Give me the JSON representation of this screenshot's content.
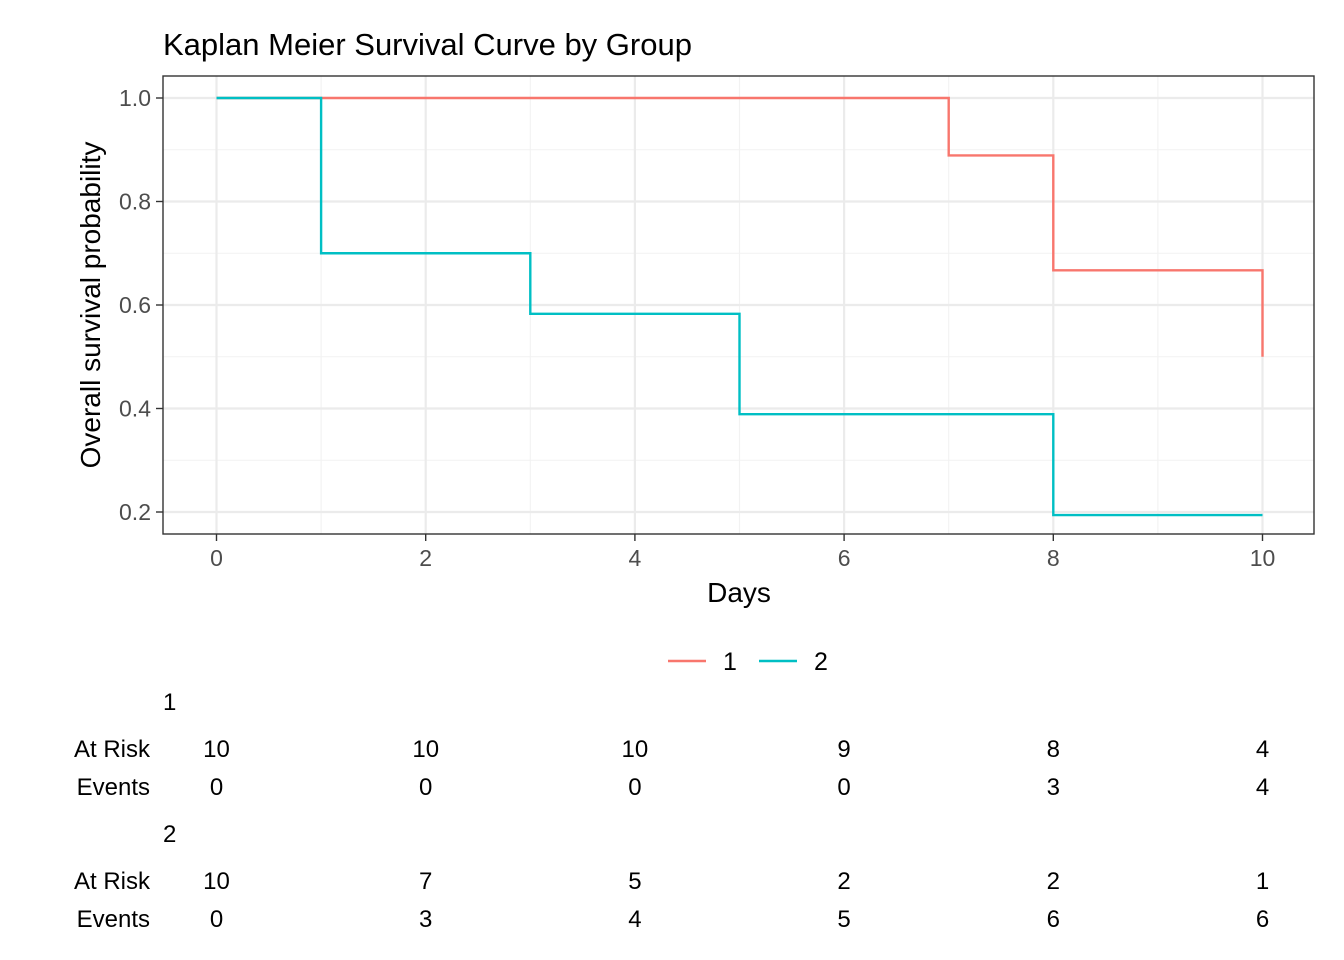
{
  "chart_data": {
    "type": "line",
    "step": true,
    "title": "Kaplan Meier Survival Curve by Group",
    "xlabel": "Days",
    "ylabel": "Overall survival probability",
    "xlim": [
      -0.5,
      10.5
    ],
    "ylim": [
      0.16,
      1.04
    ],
    "xticks": [
      0,
      2,
      4,
      6,
      8,
      10
    ],
    "xtick_labels": [
      "0",
      "2",
      "4",
      "6",
      "8",
      "10"
    ],
    "yticks": [
      0.2,
      0.4,
      0.6,
      0.8,
      1.0
    ],
    "ytick_labels": [
      "0.2",
      "0.4",
      "0.6",
      "0.8",
      "1.0"
    ],
    "grid": true,
    "legend": "bottom",
    "series": [
      {
        "name": "1",
        "color": "#F8766D",
        "x": [
          0,
          7,
          8,
          10
        ],
        "y": [
          1.0,
          0.889,
          0.667,
          0.5
        ]
      },
      {
        "name": "2",
        "color": "#00BFC4",
        "x": [
          0,
          1,
          3,
          5,
          8,
          10
        ],
        "y": [
          1.0,
          0.7,
          0.583,
          0.389,
          0.194,
          0.194
        ]
      }
    ],
    "risk_table": {
      "times": [
        0,
        2,
        4,
        6,
        8,
        10
      ],
      "row_labels": [
        "At Risk",
        "Events"
      ],
      "groups": [
        {
          "name": "1",
          "at_risk": [
            "10",
            "10",
            "10",
            "9",
            "8",
            "4"
          ],
          "events": [
            "0",
            "0",
            "0",
            "0",
            "3",
            "4"
          ]
        },
        {
          "name": "2",
          "at_risk": [
            "10",
            "7",
            "5",
            "2",
            "2",
            "1"
          ],
          "events": [
            "0",
            "3",
            "4",
            "5",
            "6",
            "6"
          ]
        }
      ]
    }
  }
}
